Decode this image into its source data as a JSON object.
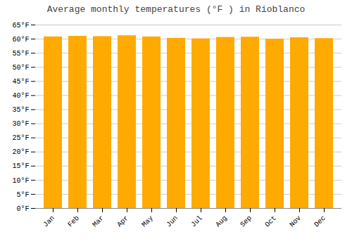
{
  "chart_data": {
    "type": "bar",
    "title": "Average monthly temperatures (°F ) in Rioblanco",
    "categories": [
      "Jan",
      "Feb",
      "Mar",
      "Apr",
      "May",
      "Jun",
      "Jul",
      "Aug",
      "Sep",
      "Oct",
      "Nov",
      "Dec"
    ],
    "values": [
      60.8,
      61.0,
      60.9,
      61.2,
      60.8,
      60.3,
      60.1,
      60.6,
      60.7,
      60.0,
      60.5,
      60.2
    ],
    "color": "#FFAA00",
    "ylim": [
      0,
      65
    ],
    "yticks": [
      {
        "value": 0,
        "label": "0°F"
      },
      {
        "value": 5,
        "label": "5°F"
      },
      {
        "value": 10,
        "label": "10°F"
      },
      {
        "value": 15,
        "label": "15°F"
      },
      {
        "value": 20,
        "label": "20°F"
      },
      {
        "value": 25,
        "label": "25°F"
      },
      {
        "value": 30,
        "label": "30°F"
      },
      {
        "value": 35,
        "label": "35°F"
      },
      {
        "value": 40,
        "label": "40°F"
      },
      {
        "value": 45,
        "label": "45°F"
      },
      {
        "value": 50,
        "label": "50°F"
      },
      {
        "value": 55,
        "label": "55°F"
      },
      {
        "value": 60,
        "label": "60°F"
      },
      {
        "value": 65,
        "label": "65°F"
      }
    ],
    "grid": true
  }
}
